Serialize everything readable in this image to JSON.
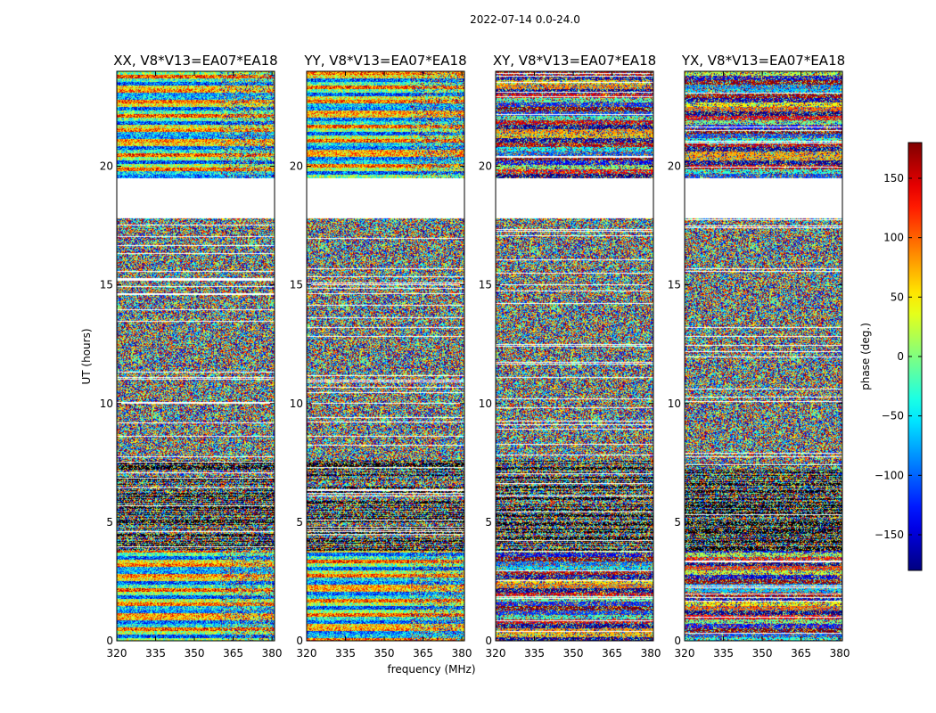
{
  "figure_title": "2022-07-14 0.0-24.0",
  "chart_data": [
    {
      "type": "heatmap",
      "title": "XX, V8*V13=EA07*EA18",
      "xlabel": "frequency (MHz)",
      "ylabel": "UT (hours)",
      "xlim": [
        320,
        381
      ],
      "ylim": [
        0,
        24
      ],
      "xticks": [
        320,
        335,
        350,
        365,
        380
      ],
      "yticks": [
        0,
        5,
        10,
        15,
        20
      ],
      "segments": [
        {
          "from": 0,
          "to": 3.8,
          "pattern": "banded"
        },
        {
          "from": 3.8,
          "to": 7.6,
          "pattern": "dark-noise"
        },
        {
          "from": 7.6,
          "to": 17.8,
          "pattern": "noise"
        },
        {
          "from": 19.5,
          "to": 24,
          "pattern": "banded"
        }
      ],
      "gaps": [
        [
          17.9,
          19.5
        ]
      ]
    },
    {
      "type": "heatmap",
      "title": "YY, V8*V13=EA07*EA18",
      "xlabel": "frequency (MHz)",
      "ylabel": "UT (hours)",
      "xlim": [
        320,
        381
      ],
      "ylim": [
        0,
        24
      ],
      "xticks": [
        320,
        335,
        350,
        365,
        380
      ],
      "yticks": [
        0,
        5,
        10,
        15,
        20
      ],
      "segments": [
        {
          "from": 0,
          "to": 3.8,
          "pattern": "banded"
        },
        {
          "from": 3.8,
          "to": 7.6,
          "pattern": "dark-noise"
        },
        {
          "from": 7.6,
          "to": 17.8,
          "pattern": "noise"
        },
        {
          "from": 19.5,
          "to": 24,
          "pattern": "banded"
        }
      ],
      "gaps": [
        [
          17.9,
          19.5
        ]
      ]
    },
    {
      "type": "heatmap",
      "title": "XY, V8*V13=EA07*EA18",
      "xlabel": "frequency (MHz)",
      "ylabel": "UT (hours)",
      "xlim": [
        320,
        381
      ],
      "ylim": [
        0,
        24
      ],
      "xticks": [
        320,
        335,
        350,
        365,
        380
      ],
      "yticks": [
        0,
        5,
        10,
        15,
        20
      ],
      "segments": [
        {
          "from": 0,
          "to": 3.8,
          "pattern": "mixed"
        },
        {
          "from": 3.8,
          "to": 7.6,
          "pattern": "dark-noise"
        },
        {
          "from": 7.6,
          "to": 17.8,
          "pattern": "noise"
        },
        {
          "from": 19.5,
          "to": 24,
          "pattern": "mixed"
        }
      ],
      "gaps": [
        [
          17.9,
          19.5
        ]
      ]
    },
    {
      "type": "heatmap",
      "title": "YX, V8*V13=EA07*EA18",
      "xlabel": "frequency (MHz)",
      "ylabel": "UT (hours)",
      "xlim": [
        320,
        381
      ],
      "ylim": [
        0,
        24
      ],
      "xticks": [
        320,
        335,
        350,
        365,
        380
      ],
      "yticks": [
        0,
        5,
        10,
        15,
        20
      ],
      "segments": [
        {
          "from": 0,
          "to": 3.8,
          "pattern": "mixed"
        },
        {
          "from": 3.8,
          "to": 7.6,
          "pattern": "dark-noise"
        },
        {
          "from": 7.6,
          "to": 17.8,
          "pattern": "noise"
        },
        {
          "from": 19.5,
          "to": 24,
          "pattern": "mixed"
        }
      ],
      "gaps": [
        [
          17.9,
          19.5
        ]
      ]
    }
  ],
  "colorbar": {
    "label": "phase (deg.)",
    "range": [
      -180,
      180
    ],
    "ticks": [
      -150,
      -100,
      -50,
      0,
      50,
      100,
      150
    ],
    "tick_labels": [
      "−150",
      "−100",
      "−50",
      "0",
      "50",
      "100",
      "150"
    ],
    "colormap": "jet"
  }
}
